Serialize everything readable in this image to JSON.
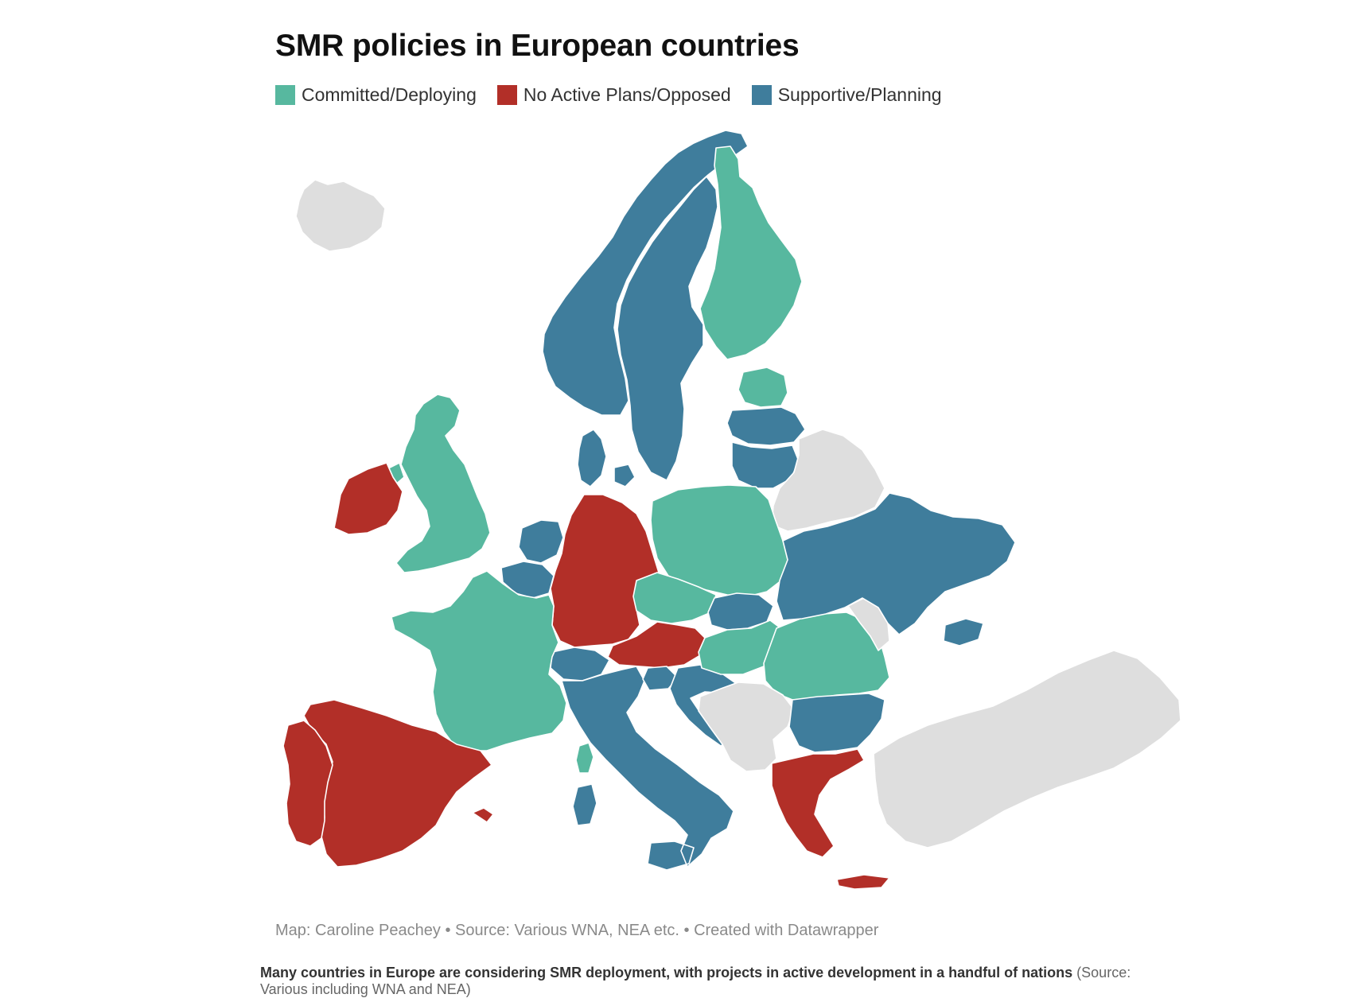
{
  "title": "SMR policies in European countries",
  "legend": [
    {
      "label": "Committed/Deploying",
      "color": "#57b89f"
    },
    {
      "label": "No Active Plans/Opposed",
      "color": "#b22f28"
    },
    {
      "label": "Supportive/Planning",
      "color": "#3f7d9c"
    }
  ],
  "colors": {
    "committed": "#57b89f",
    "opposed": "#b22f28",
    "supportive": "#3f7d9c",
    "no_data": "#dedede"
  },
  "countries": {
    "committed": [
      "Finland",
      "Estonia",
      "United Kingdom",
      "France",
      "Poland",
      "Czechia",
      "Slovakia",
      "Hungary",
      "Romania"
    ],
    "opposed": [
      "Ireland",
      "Germany",
      "Austria",
      "Spain",
      "Portugal",
      "Greece"
    ],
    "supportive": [
      "Norway",
      "Sweden",
      "Denmark",
      "Latvia",
      "Lithuania",
      "Netherlands",
      "Belgium",
      "Switzerland",
      "Italy",
      "Slovenia",
      "Croatia",
      "Bulgaria",
      "Ukraine",
      "Moldova"
    ],
    "no_data": [
      "Iceland",
      "Belarus",
      "Serbia",
      "Bosnia and Herzegovina",
      "Montenegro",
      "Albania",
      "North Macedonia",
      "Kosovo",
      "Turkey"
    ]
  },
  "credit": "Map: Caroline Peachey • Source: Various WNA, NEA etc. • Created with Datawrapper",
  "caption": {
    "bold": "Many countries in Europe are considering SMR deployment, with projects in active development in a handful of nations",
    "source": " (Source: Various including WNA and NEA)"
  }
}
